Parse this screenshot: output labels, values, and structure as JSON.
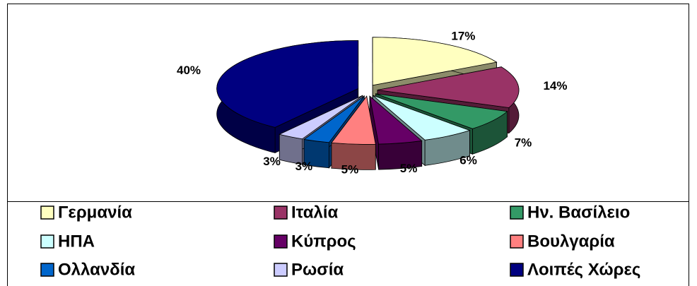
{
  "chart_data": {
    "type": "pie",
    "categories": [
      "Γερμανία",
      "Ιταλία",
      "Ην. Βασίλειο",
      "ΗΠΑ",
      "Κύπρος",
      "Βουλγαρία",
      "Ολλανδία",
      "Ρωσία",
      "Λοιπές Χώρες"
    ],
    "values": [
      17,
      14,
      7,
      6,
      5,
      5,
      3,
      3,
      40
    ],
    "value_labels": [
      "17%",
      "14%",
      "7%",
      "6%",
      "5%",
      "5%",
      "3%",
      "3%",
      "40%"
    ],
    "colors": [
      "#ffffc0",
      "#993366",
      "#339966",
      "#ccffff",
      "#660066",
      "#ff8080",
      "#0066cc",
      "#ccccff",
      "#000080"
    ],
    "legend": "bottom"
  }
}
